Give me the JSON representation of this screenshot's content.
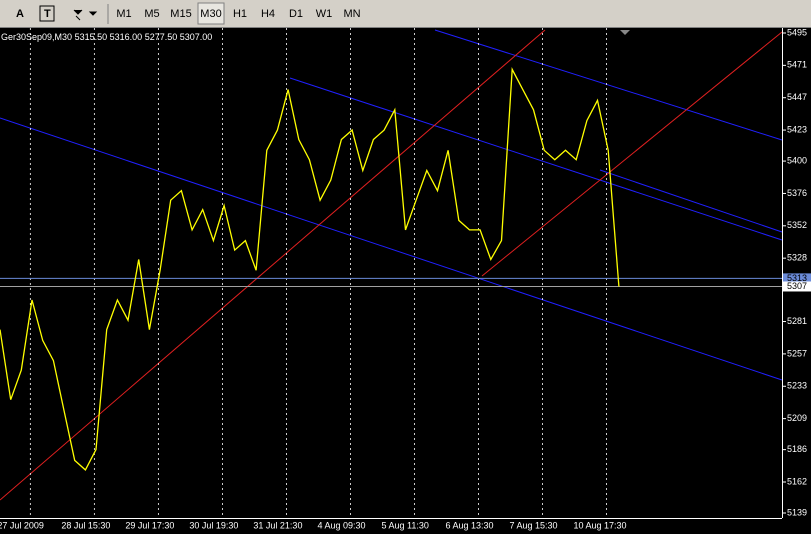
{
  "toolbar": {
    "buttons": [
      "A",
      "M1",
      "M5",
      "M15",
      "M30",
      "H1",
      "H4",
      "D1",
      "W1",
      "MN"
    ],
    "active": "M30"
  },
  "chart_header": {
    "symbol": "Ger30Sep09,M30",
    "quote": [
      "5315.50",
      "5316.00",
      "5277.50",
      "5307.00"
    ]
  },
  "chart_data": {
    "type": "line",
    "categories": [
      null,
      null,
      "27 Jul 2009",
      null,
      null,
      null,
      null,
      null,
      "28 Jul 15:30",
      null,
      null,
      null,
      null,
      null,
      "29 Jul 17:30",
      null,
      null,
      null,
      null,
      null,
      "30 Jul 19:30",
      null,
      null,
      null,
      null,
      null,
      "31 Jul 21:30",
      null,
      null,
      null,
      null,
      null,
      "4 Aug 09:30",
      null,
      null,
      null,
      null,
      null,
      "5 Aug 11:30",
      null,
      null,
      null,
      null,
      null,
      "6 Aug 13:30",
      null,
      null,
      null,
      null,
      null,
      "7 Aug 15:30",
      null,
      null,
      null,
      null,
      null,
      "10 Aug 17:30",
      null,
      null
    ],
    "series": [
      {
        "name": "Ger30Sep09,M30",
        "color": "#ffff00",
        "values": [
          5275,
          5223,
          5245,
          5297,
          5267,
          5252,
          5215,
          5178,
          5171,
          5186,
          5275,
          5297,
          5282,
          5327,
          5275,
          5319,
          5371,
          5378,
          5349,
          5364,
          5341,
          5367,
          5334,
          5341,
          5319,
          5408,
          5423,
          5453,
          5416,
          5401,
          5371,
          5386,
          5416,
          5423,
          5393,
          5416,
          5423,
          5438,
          5349,
          5371,
          5393,
          5378,
          5408,
          5356,
          5349,
          5349,
          5327,
          5341,
          5468,
          5453,
          5438,
          5408,
          5401,
          5408,
          5401,
          5430,
          5445,
          5408,
          5307
        ]
      }
    ],
    "ylim": [
      5135.3,
      5498.7
    ],
    "yticks": [
      5495,
      5471,
      5447,
      5423,
      5400,
      5376,
      5352,
      5328,
      5281,
      5257,
      5233,
      5209,
      5186,
      5162,
      5139
    ],
    "price_lines": [
      5313,
      5307
    ],
    "grid": true
  }
}
